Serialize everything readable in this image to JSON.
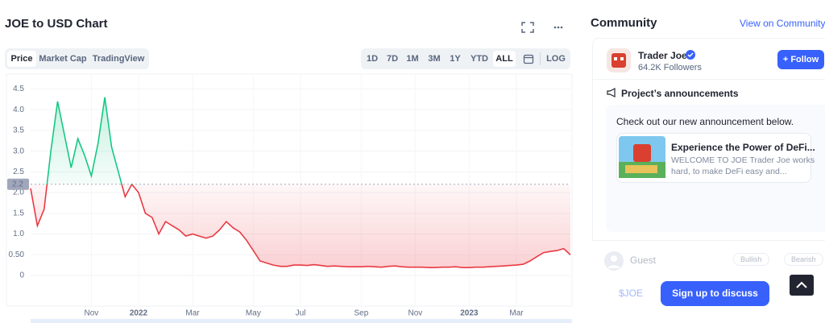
{
  "header": {
    "title": "JOE to USD Chart"
  },
  "tabs": [
    "Price",
    "Market Cap",
    "TradingView"
  ],
  "ranges": [
    "1D",
    "7D",
    "1M",
    "3M",
    "1Y",
    "YTD",
    "ALL"
  ],
  "log_button": "LOG",
  "chart_data": {
    "type": "line",
    "categories": [
      null,
      null,
      null,
      null,
      null,
      null,
      null,
      null,
      null,
      "Nov",
      null,
      null,
      null,
      null,
      null,
      null,
      "2022",
      null,
      null,
      null,
      null,
      null,
      null,
      null,
      "Mar",
      null,
      null,
      null,
      null,
      null,
      null,
      null,
      null,
      "May",
      null,
      null,
      null,
      null,
      null,
      null,
      "Jul",
      null,
      null,
      null,
      null,
      null,
      null,
      null,
      null,
      "Sep",
      null,
      null,
      null,
      null,
      null,
      null,
      null,
      "Nov",
      null,
      null,
      null,
      null,
      null,
      null,
      null,
      "2023",
      null,
      null,
      null,
      null,
      null,
      null,
      "Mar",
      null,
      null,
      null,
      null,
      null,
      null,
      null,
      null
    ],
    "series": [
      {
        "values": [
          2.1,
          1.2,
          1.6,
          3.0,
          4.2,
          3.4,
          2.6,
          3.3,
          2.9,
          2.4,
          3.2,
          4.3,
          3.1,
          2.5,
          1.9,
          2.2,
          2.0,
          1.5,
          1.4,
          1.0,
          1.3,
          1.2,
          1.1,
          0.95,
          1.0,
          0.95,
          0.9,
          0.95,
          1.1,
          1.3,
          1.15,
          1.05,
          0.85,
          0.6,
          0.35,
          0.3,
          0.25,
          0.22,
          0.22,
          0.25,
          0.25,
          0.24,
          0.26,
          0.24,
          0.22,
          0.23,
          0.22,
          0.21,
          0.21,
          0.21,
          0.22,
          0.21,
          0.2,
          0.22,
          0.23,
          0.21,
          0.2,
          0.2,
          0.2,
          0.19,
          0.19,
          0.2,
          0.2,
          0.21,
          0.19,
          0.19,
          0.2,
          0.2,
          0.21,
          0.22,
          0.23,
          0.24,
          0.25,
          0.27,
          0.35,
          0.45,
          0.55,
          0.58,
          0.6,
          0.65,
          0.5
        ]
      }
    ],
    "color_up": "#16c784",
    "color_down": "#ea3943",
    "baseline": {
      "value": 2.2,
      "label": "2.2"
    },
    "ylim": [
      0,
      4.8
    ],
    "yticks": [
      0,
      {
        "value": 0.5,
        "label": "0.50"
      },
      {
        "value": 1,
        "label": "1.0"
      },
      1.5,
      {
        "value": 2,
        "label": "2.0"
      },
      2.5,
      {
        "value": 3,
        "label": "3.0"
      },
      3.5,
      {
        "value": 4,
        "label": "4.0"
      },
      4.5
    ],
    "grid": true
  },
  "community": {
    "title": "Community",
    "link": "View on Community",
    "account": {
      "name": "Trader Joe",
      "followers": "64.2K Followers",
      "follow": "+ Follow"
    },
    "announcements": {
      "title": "Project’s announcements",
      "intro": "Check out our new announcement below.",
      "card_title": "Experience the Power of DeFi...",
      "card_text_1": "WELCOME TO JOE Trader Joe works",
      "card_text_2": "hard, to make DeFi easy and..."
    },
    "guest": "Guest",
    "bullish": "Bullish",
    "bearish": "Bearish",
    "ticker": "$JOE",
    "signup": "Sign up to discuss"
  }
}
